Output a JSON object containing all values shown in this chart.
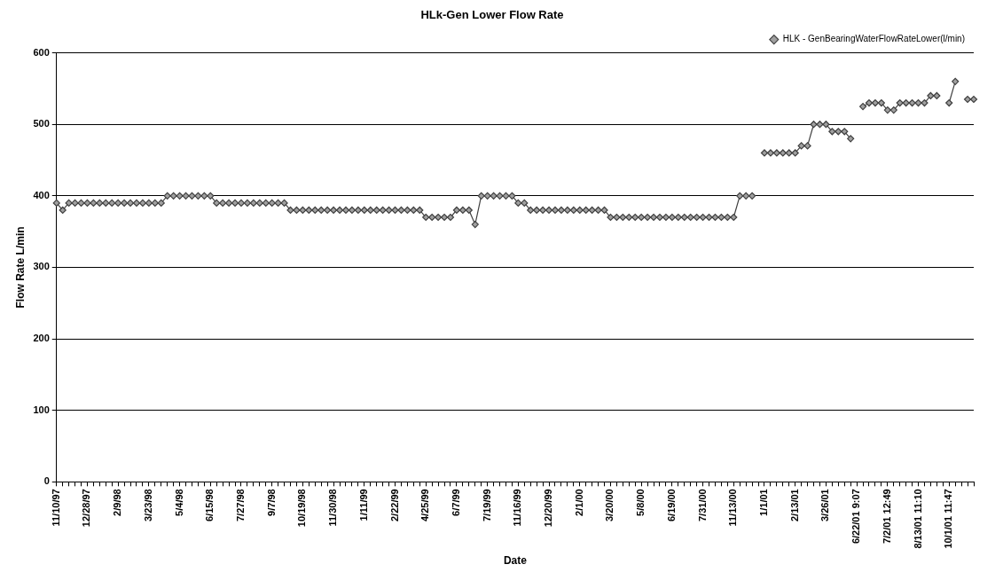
{
  "chart_data": {
    "type": "line",
    "title": "HLk-Gen Lower Flow Rate",
    "xlabel": "Date",
    "ylabel": "Flow Rate L/min",
    "categories": [
      "11/10/97",
      null,
      null,
      null,
      null,
      "12/28/97",
      null,
      null,
      null,
      null,
      "2/9/98",
      null,
      null,
      null,
      null,
      "3/23/98",
      null,
      null,
      null,
      null,
      "5/4/98",
      null,
      null,
      null,
      null,
      "6/15/98",
      null,
      null,
      null,
      null,
      "7/27/98",
      null,
      null,
      null,
      null,
      "9/7/98",
      null,
      null,
      null,
      null,
      "10/19/98",
      null,
      null,
      null,
      null,
      "11/30/98",
      null,
      null,
      null,
      null,
      "1/11/99",
      null,
      null,
      null,
      null,
      "2/22/99",
      null,
      null,
      null,
      null,
      "4/25/99",
      null,
      null,
      null,
      null,
      "6/7/99",
      null,
      null,
      null,
      null,
      "7/19/99",
      null,
      null,
      null,
      null,
      "11/16/99",
      null,
      null,
      null,
      null,
      "12/20/99",
      null,
      null,
      null,
      null,
      "2/1/00",
      null,
      null,
      null,
      null,
      "3/20/00",
      null,
      null,
      null,
      null,
      "5/8/00",
      null,
      null,
      null,
      null,
      "6/19/00",
      null,
      null,
      null,
      null,
      "7/31/00",
      null,
      null,
      null,
      null,
      "11/13/00",
      null,
      null,
      null,
      null,
      "1/1/01",
      null,
      null,
      null,
      null,
      "2/13/01",
      null,
      null,
      null,
      null,
      "3/26/01",
      null,
      null,
      null,
      null,
      "6/22/01 9:07",
      null,
      null,
      null,
      null,
      "7/2/01 12:49",
      null,
      null,
      null,
      null,
      "8/13/01 11:10",
      null,
      null,
      null,
      null,
      "10/1/01 11:47",
      null,
      null,
      null,
      null
    ],
    "series": [
      {
        "name": "HLK - GenBearingWaterFlowRateLower(l/min)",
        "color": "#404040",
        "values": [
          390,
          380,
          390,
          390,
          390,
          390,
          390,
          390,
          390,
          390,
          390,
          390,
          390,
          390,
          390,
          390,
          390,
          390,
          400,
          400,
          400,
          400,
          400,
          400,
          400,
          400,
          390,
          390,
          390,
          390,
          390,
          390,
          390,
          390,
          390,
          390,
          390,
          390,
          380,
          380,
          380,
          380,
          380,
          380,
          380,
          380,
          380,
          380,
          380,
          380,
          380,
          380,
          380,
          380,
          380,
          380,
          380,
          380,
          380,
          380,
          370,
          370,
          370,
          370,
          370,
          380,
          380,
          380,
          360,
          400,
          400,
          400,
          400,
          400,
          400,
          390,
          390,
          380,
          380,
          380,
          380,
          380,
          380,
          380,
          380,
          380,
          380,
          380,
          380,
          380,
          370,
          370,
          370,
          370,
          370,
          370,
          370,
          370,
          370,
          370,
          370,
          370,
          370,
          370,
          370,
          370,
          370,
          370,
          370,
          370,
          370,
          400,
          400,
          400,
          null,
          460,
          460,
          460,
          460,
          460,
          460,
          470,
          470,
          500,
          500,
          500,
          490,
          490,
          490,
          480,
          null,
          525,
          530,
          530,
          530,
          520,
          520,
          530,
          530,
          530,
          530,
          530,
          540,
          540,
          null,
          530,
          560,
          null,
          535,
          535
        ]
      }
    ],
    "ylim": [
      0,
      600
    ],
    "yticks": [
      0,
      100,
      200,
      300,
      400,
      500,
      600
    ],
    "grid": "y",
    "legend": "top right",
    "marker": "diamond",
    "line_style": "solid"
  }
}
